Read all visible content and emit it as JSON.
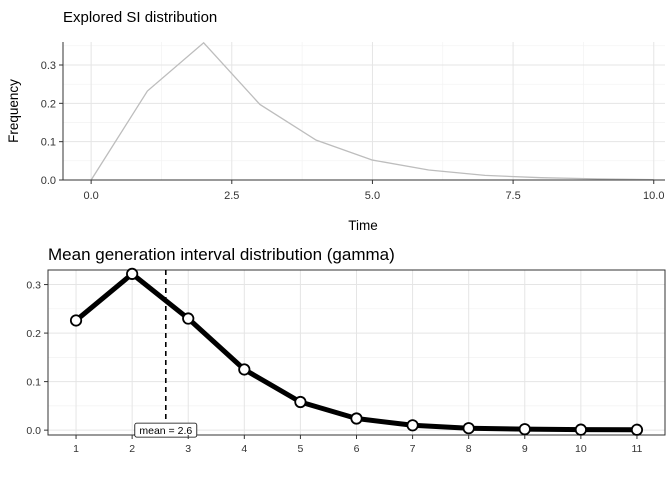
{
  "chart_data": [
    {
      "type": "line",
      "title": "Explored SI distribution",
      "xlabel": "Time",
      "ylabel": "Frequency",
      "xlim": [
        -0.5,
        10.2
      ],
      "ylim": [
        0,
        0.36
      ],
      "x_ticks": [
        0.0,
        2.5,
        5.0,
        7.5,
        10.0
      ],
      "x_tick_labels": [
        "0.0",
        "2.5",
        "5.0",
        "7.5",
        "10.0"
      ],
      "y_ticks": [
        0.0,
        0.1,
        0.2,
        0.3
      ],
      "y_tick_labels": [
        "0.0",
        "0.1",
        "0.2",
        "0.3"
      ],
      "grid": true,
      "line_color": "#bdbdbd",
      "series": [
        {
          "x": [
            0,
            1,
            2,
            3,
            4,
            5,
            6,
            7,
            8,
            9,
            10
          ],
          "values": [
            0.0,
            0.232,
            0.358,
            0.197,
            0.104,
            0.052,
            0.026,
            0.012,
            0.006,
            0.003,
            0.001
          ]
        }
      ]
    },
    {
      "type": "line",
      "title": "Mean generation interval distribution (gamma)",
      "xlabel": "",
      "ylabel": "",
      "xlim": [
        0.5,
        11.5
      ],
      "ylim": [
        -0.01,
        0.33
      ],
      "x_ticks": [
        1,
        2,
        3,
        4,
        5,
        6,
        7,
        8,
        9,
        10,
        11
      ],
      "x_tick_labels": [
        "1",
        "2",
        "3",
        "4",
        "5",
        "6",
        "7",
        "8",
        "9",
        "10",
        "11"
      ],
      "y_ticks": [
        0.0,
        0.1,
        0.2,
        0.3
      ],
      "y_tick_labels": [
        "0.0",
        "0.1",
        "0.2",
        "0.3"
      ],
      "grid": true,
      "line_color": "#000000",
      "series": [
        {
          "x": [
            1,
            2,
            3,
            4,
            5,
            6,
            7,
            8,
            9,
            10,
            11
          ],
          "values": [
            0.226,
            0.322,
            0.23,
            0.125,
            0.058,
            0.024,
            0.01,
            0.004,
            0.002,
            0.001,
            0.0008
          ]
        }
      ],
      "vline": {
        "x": 2.6,
        "style": "dashed"
      },
      "annotation": {
        "text": "mean = 2.6",
        "x": 2.6,
        "y": 0.0
      }
    }
  ]
}
